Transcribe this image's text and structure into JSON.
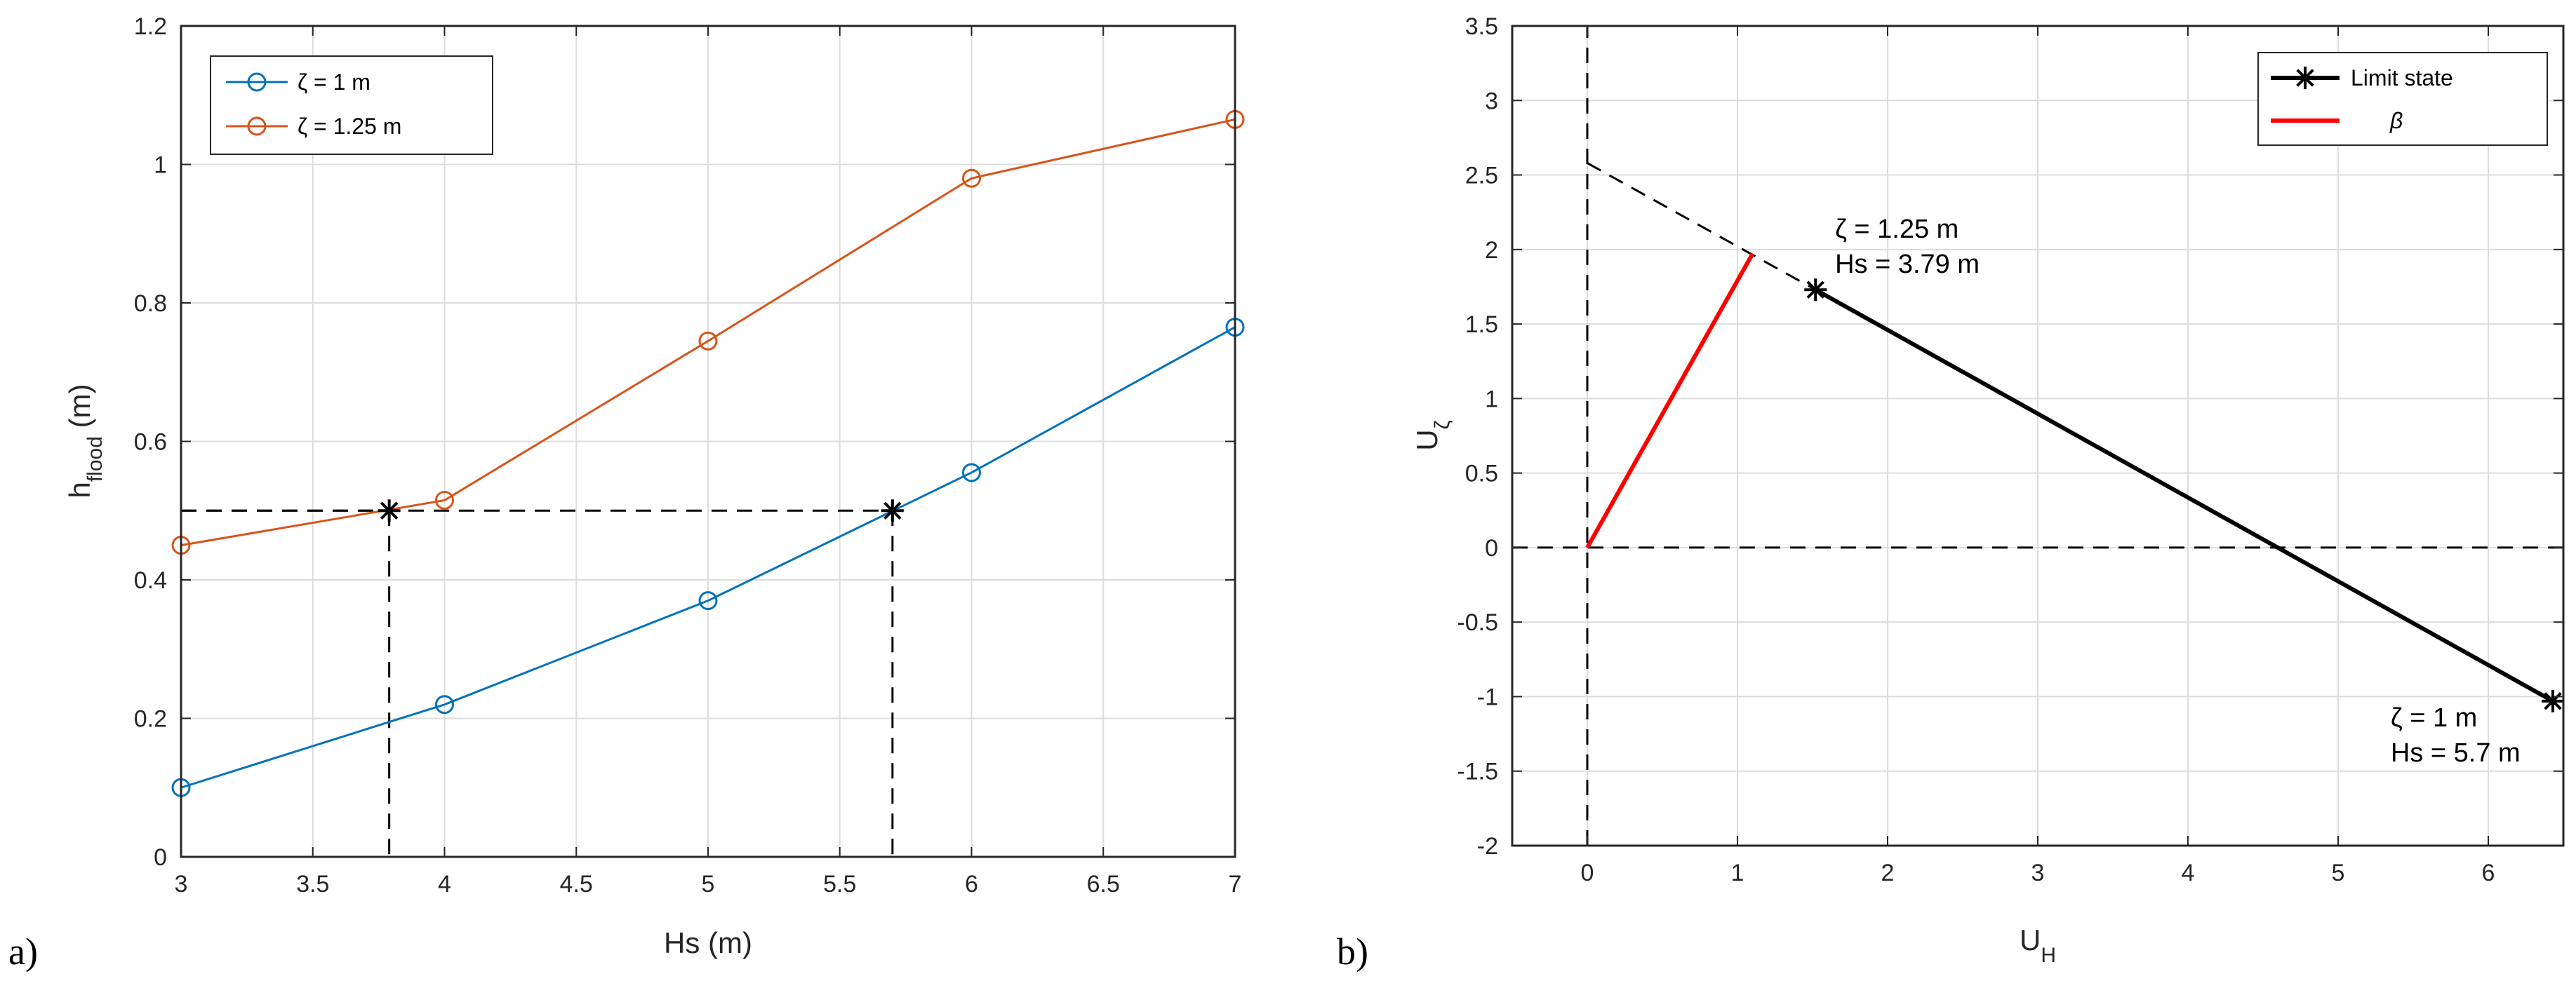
{
  "chart_data": [
    {
      "type": "line",
      "panel_label": "a)",
      "xlabel": "Hs (m)",
      "ylabel_main": "h",
      "ylabel_sub": "flood",
      "ylabel_unit": " (m)",
      "xlim": [
        3,
        7
      ],
      "ylim": [
        0,
        1.2
      ],
      "xticks": [
        3,
        3.5,
        4,
        4.5,
        5,
        5.5,
        6,
        6.5,
        7
      ],
      "yticks": [
        0,
        0.2,
        0.4,
        0.6,
        0.8,
        1,
        1.2
      ],
      "grid": true,
      "legend_position": "top-left",
      "series": [
        {
          "name": "ζ = 1 m",
          "color": "#0072BD",
          "x": [
            3,
            4,
            5,
            6,
            7
          ],
          "y": [
            0.1,
            0.22,
            0.37,
            0.555,
            0.765
          ]
        },
        {
          "name": "ζ = 1.25 m",
          "color": "#D95319",
          "x": [
            3,
            4,
            5,
            6,
            7
          ],
          "y": [
            0.45,
            0.515,
            0.745,
            0.98,
            1.065
          ]
        }
      ],
      "threshold": {
        "y": 0.5,
        "points": [
          {
            "x": 3.79,
            "y": 0.5
          },
          {
            "x": 5.7,
            "y": 0.5
          }
        ]
      }
    },
    {
      "type": "line",
      "panel_label": "b)",
      "xlabel_main": "U",
      "xlabel_sub": "H",
      "ylabel_main": "U",
      "ylabel_sub": "ζ",
      "xlim": [
        -0.5,
        6.5
      ],
      "ylim": [
        -2,
        3.5
      ],
      "xticks": [
        0,
        1,
        2,
        3,
        4,
        5,
        6
      ],
      "yticks": [
        -2,
        -1.5,
        -1,
        -0.5,
        0,
        0.5,
        1,
        1.5,
        2,
        2.5,
        3,
        3.5
      ],
      "grid": true,
      "legend_position": "top-right",
      "limit_state": {
        "name": "Limit state",
        "color": "#000000",
        "points": [
          {
            "x": 1.52,
            "y": 1.73
          },
          {
            "x": 6.43,
            "y": -1.03
          }
        ]
      },
      "extension_dashed": {
        "points": [
          {
            "x": 0,
            "y": 2.58
          },
          {
            "x": 1.52,
            "y": 1.73
          }
        ]
      },
      "beta": {
        "name": "β",
        "color": "#FF0000",
        "points": [
          {
            "x": 0,
            "y": 0
          },
          {
            "x": 1.1,
            "y": 1.97
          }
        ]
      },
      "annotations": [
        {
          "line1": "ζ = 1.25  m",
          "line2": "Hs = 3.79 m",
          "x": 1.65,
          "y": 2.08
        },
        {
          "line1": "ζ = 1  m",
          "line2": "Hs = 5.7 m",
          "x": 5.35,
          "y": -1.2
        }
      ]
    }
  ]
}
